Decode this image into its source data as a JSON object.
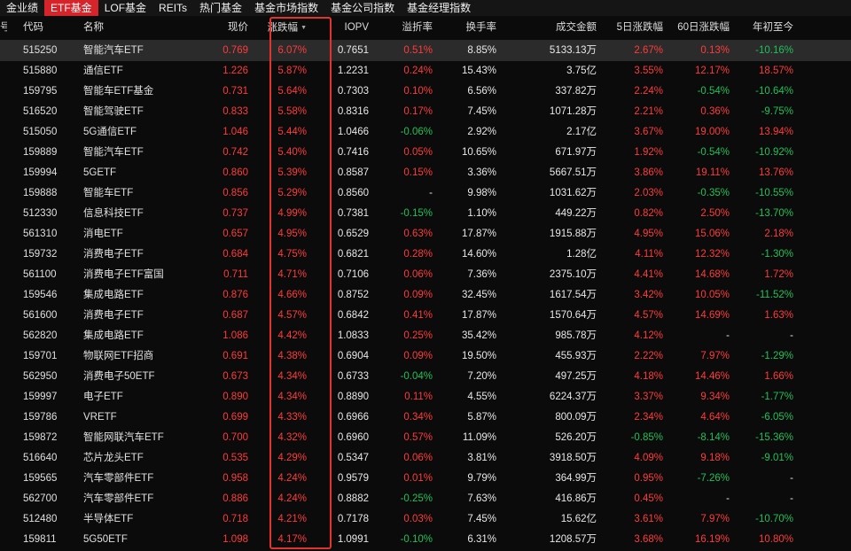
{
  "tabs": [
    {
      "label": "金业绩",
      "active": false
    },
    {
      "label": "ETF基金",
      "active": true
    },
    {
      "label": "LOF基金",
      "active": false
    },
    {
      "label": "REITs",
      "active": false
    },
    {
      "label": "热门基金",
      "active": false
    },
    {
      "label": "基金市场指数",
      "active": false
    },
    {
      "label": "基金公司指数",
      "active": false
    },
    {
      "label": "基金经理指数",
      "active": false
    }
  ],
  "columns": {
    "num": "号",
    "code": "代码",
    "name": "名称",
    "price": "现价",
    "change": "涨跌幅",
    "iopv": "IOPV",
    "premium": "溢折率",
    "turnover": "换手率",
    "amount": "成交金额",
    "chg5": "5日涨跌幅",
    "chg60": "60日涨跌幅",
    "ytd": "年初至今"
  },
  "sort_indicator": "▼",
  "colors": {
    "up": "#ff3b3b",
    "down": "#20c05a",
    "tab_active": "#d5252b",
    "highlight": "#e4322d"
  },
  "rows": [
    {
      "code": "515250",
      "name": "智能汽车ETF",
      "price": "0.769",
      "change": "6.07%",
      "iopv": "0.7651",
      "premium": "0.51%",
      "turnover": "8.85%",
      "amount": "5133.13万",
      "chg5": "2.67%",
      "chg60": "0.13%",
      "ytd": "-10.16%"
    },
    {
      "code": "515880",
      "name": "通信ETF",
      "price": "1.226",
      "change": "5.87%",
      "iopv": "1.2231",
      "premium": "0.24%",
      "turnover": "15.43%",
      "amount": "3.75亿",
      "chg5": "3.55%",
      "chg60": "12.17%",
      "ytd": "18.57%"
    },
    {
      "code": "159795",
      "name": "智能车ETF基金",
      "price": "0.731",
      "change": "5.64%",
      "iopv": "0.7303",
      "premium": "0.10%",
      "turnover": "6.56%",
      "amount": "337.82万",
      "chg5": "2.24%",
      "chg60": "-0.54%",
      "ytd": "-10.64%"
    },
    {
      "code": "516520",
      "name": "智能驾驶ETF",
      "price": "0.833",
      "change": "5.58%",
      "iopv": "0.8316",
      "premium": "0.17%",
      "turnover": "7.45%",
      "amount": "1071.28万",
      "chg5": "2.21%",
      "chg60": "0.36%",
      "ytd": "-9.75%"
    },
    {
      "code": "515050",
      "name": "5G通信ETF",
      "price": "1.046",
      "change": "5.44%",
      "iopv": "1.0466",
      "premium": "-0.06%",
      "turnover": "2.92%",
      "amount": "2.17亿",
      "chg5": "3.67%",
      "chg60": "19.00%",
      "ytd": "13.94%"
    },
    {
      "code": "159889",
      "name": "智能汽车ETF",
      "price": "0.742",
      "change": "5.40%",
      "iopv": "0.7416",
      "premium": "0.05%",
      "turnover": "10.65%",
      "amount": "671.97万",
      "chg5": "1.92%",
      "chg60": "-0.54%",
      "ytd": "-10.92%"
    },
    {
      "code": "159994",
      "name": "5GETF",
      "price": "0.860",
      "change": "5.39%",
      "iopv": "0.8587",
      "premium": "0.15%",
      "turnover": "3.36%",
      "amount": "5667.51万",
      "chg5": "3.86%",
      "chg60": "19.11%",
      "ytd": "13.76%"
    },
    {
      "code": "159888",
      "name": "智能车ETF",
      "price": "0.856",
      "change": "5.29%",
      "iopv": "0.8560",
      "premium": "-",
      "turnover": "9.98%",
      "amount": "1031.62万",
      "chg5": "2.03%",
      "chg60": "-0.35%",
      "ytd": "-10.55%"
    },
    {
      "code": "512330",
      "name": "信息科技ETF",
      "price": "0.737",
      "change": "4.99%",
      "iopv": "0.7381",
      "premium": "-0.15%",
      "turnover": "1.10%",
      "amount": "449.22万",
      "chg5": "0.82%",
      "chg60": "2.50%",
      "ytd": "-13.70%"
    },
    {
      "code": "561310",
      "name": "消电ETF",
      "price": "0.657",
      "change": "4.95%",
      "iopv": "0.6529",
      "premium": "0.63%",
      "turnover": "17.87%",
      "amount": "1915.88万",
      "chg5": "4.95%",
      "chg60": "15.06%",
      "ytd": "2.18%"
    },
    {
      "code": "159732",
      "name": "消费电子ETF",
      "price": "0.684",
      "change": "4.75%",
      "iopv": "0.6821",
      "premium": "0.28%",
      "turnover": "14.60%",
      "amount": "1.28亿",
      "chg5": "4.11%",
      "chg60": "12.32%",
      "ytd": "-1.30%"
    },
    {
      "code": "561100",
      "name": "消费电子ETF富国",
      "price": "0.711",
      "change": "4.71%",
      "iopv": "0.7106",
      "premium": "0.06%",
      "turnover": "7.36%",
      "amount": "2375.10万",
      "chg5": "4.41%",
      "chg60": "14.68%",
      "ytd": "1.72%"
    },
    {
      "code": "159546",
      "name": "集成电路ETF",
      "price": "0.876",
      "change": "4.66%",
      "iopv": "0.8752",
      "premium": "0.09%",
      "turnover": "32.45%",
      "amount": "1617.54万",
      "chg5": "3.42%",
      "chg60": "10.05%",
      "ytd": "-11.52%"
    },
    {
      "code": "561600",
      "name": "消费电子ETF",
      "price": "0.687",
      "change": "4.57%",
      "iopv": "0.6842",
      "premium": "0.41%",
      "turnover": "17.87%",
      "amount": "1570.64万",
      "chg5": "4.57%",
      "chg60": "14.69%",
      "ytd": "1.63%"
    },
    {
      "code": "562820",
      "name": "集成电路ETF",
      "price": "1.086",
      "change": "4.42%",
      "iopv": "1.0833",
      "premium": "0.25%",
      "turnover": "35.42%",
      "amount": "985.78万",
      "chg5": "4.12%",
      "chg60": "-",
      "ytd": "-"
    },
    {
      "code": "159701",
      "name": "物联网ETF招商",
      "price": "0.691",
      "change": "4.38%",
      "iopv": "0.6904",
      "premium": "0.09%",
      "turnover": "19.50%",
      "amount": "455.93万",
      "chg5": "2.22%",
      "chg60": "7.97%",
      "ytd": "-1.29%"
    },
    {
      "code": "562950",
      "name": "消费电子50ETF",
      "price": "0.673",
      "change": "4.34%",
      "iopv": "0.6733",
      "premium": "-0.04%",
      "turnover": "7.20%",
      "amount": "497.25万",
      "chg5": "4.18%",
      "chg60": "14.46%",
      "ytd": "1.66%"
    },
    {
      "code": "159997",
      "name": "电子ETF",
      "price": "0.890",
      "change": "4.34%",
      "iopv": "0.8890",
      "premium": "0.11%",
      "turnover": "4.55%",
      "amount": "6224.37万",
      "chg5": "3.37%",
      "chg60": "9.34%",
      "ytd": "-1.77%"
    },
    {
      "code": "159786",
      "name": "VRETF",
      "price": "0.699",
      "change": "4.33%",
      "iopv": "0.6966",
      "premium": "0.34%",
      "turnover": "5.87%",
      "amount": "800.09万",
      "chg5": "2.34%",
      "chg60": "4.64%",
      "ytd": "-6.05%"
    },
    {
      "code": "159872",
      "name": "智能网联汽车ETF",
      "price": "0.700",
      "change": "4.32%",
      "iopv": "0.6960",
      "premium": "0.57%",
      "turnover": "11.09%",
      "amount": "526.20万",
      "chg5": "-0.85%",
      "chg60": "-8.14%",
      "ytd": "-15.36%"
    },
    {
      "code": "516640",
      "name": "芯片龙头ETF",
      "price": "0.535",
      "change": "4.29%",
      "iopv": "0.5347",
      "premium": "0.06%",
      "turnover": "3.81%",
      "amount": "3918.50万",
      "chg5": "4.09%",
      "chg60": "9.18%",
      "ytd": "-9.01%"
    },
    {
      "code": "159565",
      "name": "汽车零部件ETF",
      "price": "0.958",
      "change": "4.24%",
      "iopv": "0.9579",
      "premium": "0.01%",
      "turnover": "9.79%",
      "amount": "364.99万",
      "chg5": "0.95%",
      "chg60": "-7.26%",
      "ytd": "-"
    },
    {
      "code": "562700",
      "name": "汽车零部件ETF",
      "price": "0.886",
      "change": "4.24%",
      "iopv": "0.8882",
      "premium": "-0.25%",
      "turnover": "7.63%",
      "amount": "416.86万",
      "chg5": "0.45%",
      "chg60": "-",
      "ytd": "-"
    },
    {
      "code": "512480",
      "name": "半导体ETF",
      "price": "0.718",
      "change": "4.21%",
      "iopv": "0.7178",
      "premium": "0.03%",
      "turnover": "7.45%",
      "amount": "15.62亿",
      "chg5": "3.61%",
      "chg60": "7.97%",
      "ytd": "-10.70%"
    },
    {
      "code": "159811",
      "name": "5G50ETF",
      "price": "1.098",
      "change": "4.17%",
      "iopv": "1.0991",
      "premium": "-0.10%",
      "turnover": "6.31%",
      "amount": "1208.57万",
      "chg5": "3.68%",
      "chg60": "16.19%",
      "ytd": "10.80%"
    }
  ]
}
